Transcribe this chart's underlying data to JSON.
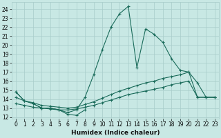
{
  "xlabel": "Humidex (Indice chaleur)",
  "xlim": [
    -0.5,
    23.5
  ],
  "ylim": [
    11.8,
    24.8
  ],
  "yticks": [
    12,
    13,
    14,
    15,
    16,
    17,
    18,
    19,
    20,
    21,
    22,
    23,
    24
  ],
  "xticks": [
    0,
    1,
    2,
    3,
    4,
    5,
    6,
    7,
    8,
    9,
    10,
    11,
    12,
    13,
    14,
    15,
    16,
    17,
    18,
    19,
    20,
    21,
    22,
    23
  ],
  "bg_color": "#c8e8e4",
  "line_color": "#1a6b5a",
  "grid_color": "#a8ccca",
  "lines": [
    [
      14.8,
      13.8,
      13.5,
      13.0,
      13.0,
      12.8,
      12.5,
      12.8,
      14.2,
      16.7,
      19.5,
      22.0,
      23.5,
      24.3,
      17.5,
      21.8,
      21.2,
      20.3,
      18.5,
      17.2,
      17.0,
      15.8,
      14.2,
      14.2
    ],
    [
      14.8,
      13.8,
      13.5,
      13.0,
      13.0,
      12.8,
      12.3,
      12.2,
      12.8,
      null,
      null,
      null,
      null,
      null,
      null,
      null,
      null,
      null,
      null,
      null,
      null,
      null,
      null,
      null
    ],
    [
      14.2,
      13.8,
      13.6,
      13.3,
      13.2,
      13.1,
      13.0,
      13.1,
      13.4,
      13.7,
      14.1,
      14.5,
      14.9,
      15.2,
      15.5,
      15.8,
      16.0,
      16.3,
      16.5,
      16.7,
      17.0,
      14.2,
      14.2,
      14.2
    ],
    [
      13.5,
      13.3,
      13.1,
      13.0,
      12.9,
      12.8,
      12.8,
      12.9,
      13.1,
      13.3,
      13.6,
      13.9,
      14.2,
      14.5,
      14.7,
      14.9,
      15.1,
      15.3,
      15.6,
      15.8,
      16.0,
      14.2,
      14.2,
      14.2
    ]
  ]
}
